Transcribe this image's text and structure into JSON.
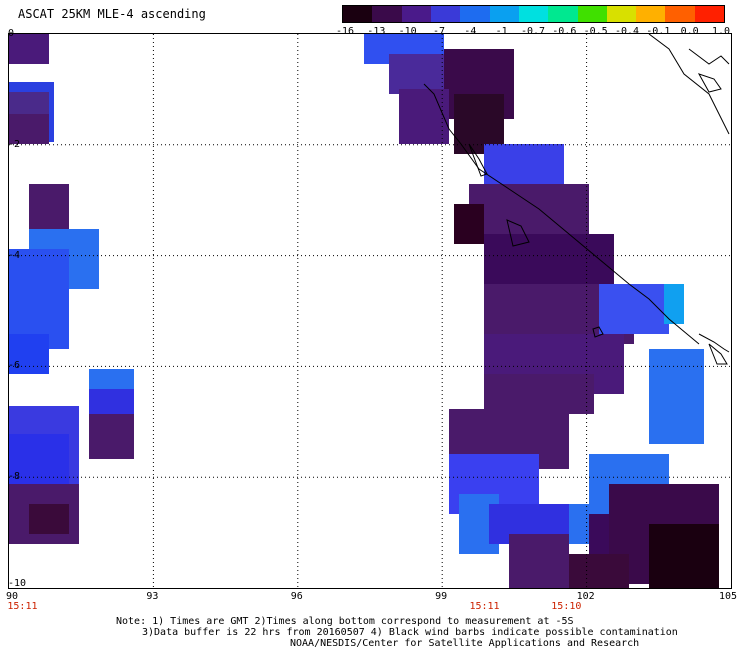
{
  "title": "ASCAT 25KM MLE-4 ascending",
  "colorbar": {
    "labels": [
      "-16",
      "-13",
      "-10",
      "-7",
      "-4",
      "-1",
      "-0.7",
      "-0.6",
      "-0.5",
      "-0.4",
      "-0.1",
      "0.0",
      "1.0"
    ],
    "colors": [
      "#1a0010",
      "#3a0a4a",
      "#4a1a8a",
      "#3a3ad8",
      "#1e6cf0",
      "#0aa0f0",
      "#00e0e0",
      "#00e890",
      "#40e000",
      "#d8e000",
      "#ffb000",
      "#ff6000",
      "#ff2000"
    ]
  },
  "x_ticks": [
    "90",
    "93",
    "96",
    "99",
    "102",
    "105"
  ],
  "y_ticks": [
    "0",
    "-2",
    "-4",
    "-6",
    "-8",
    "-10"
  ],
  "times": [
    {
      "label": "15:11",
      "lon": 90.3
    },
    {
      "label": "15:11",
      "lon": 99.9
    },
    {
      "label": "15:10",
      "lon": 101.6
    }
  ],
  "notes": {
    "line1": "Note: 1) Times are GMT 2)Times along bottom correspond to measurement at -5S",
    "line2": "3)Data buffer is 22 hrs from 20160507 4) Black wind barbs indicate possible contamination",
    "line3": "NOAA/NESDIS/Center for Satellite Applications and Research"
  }
}
